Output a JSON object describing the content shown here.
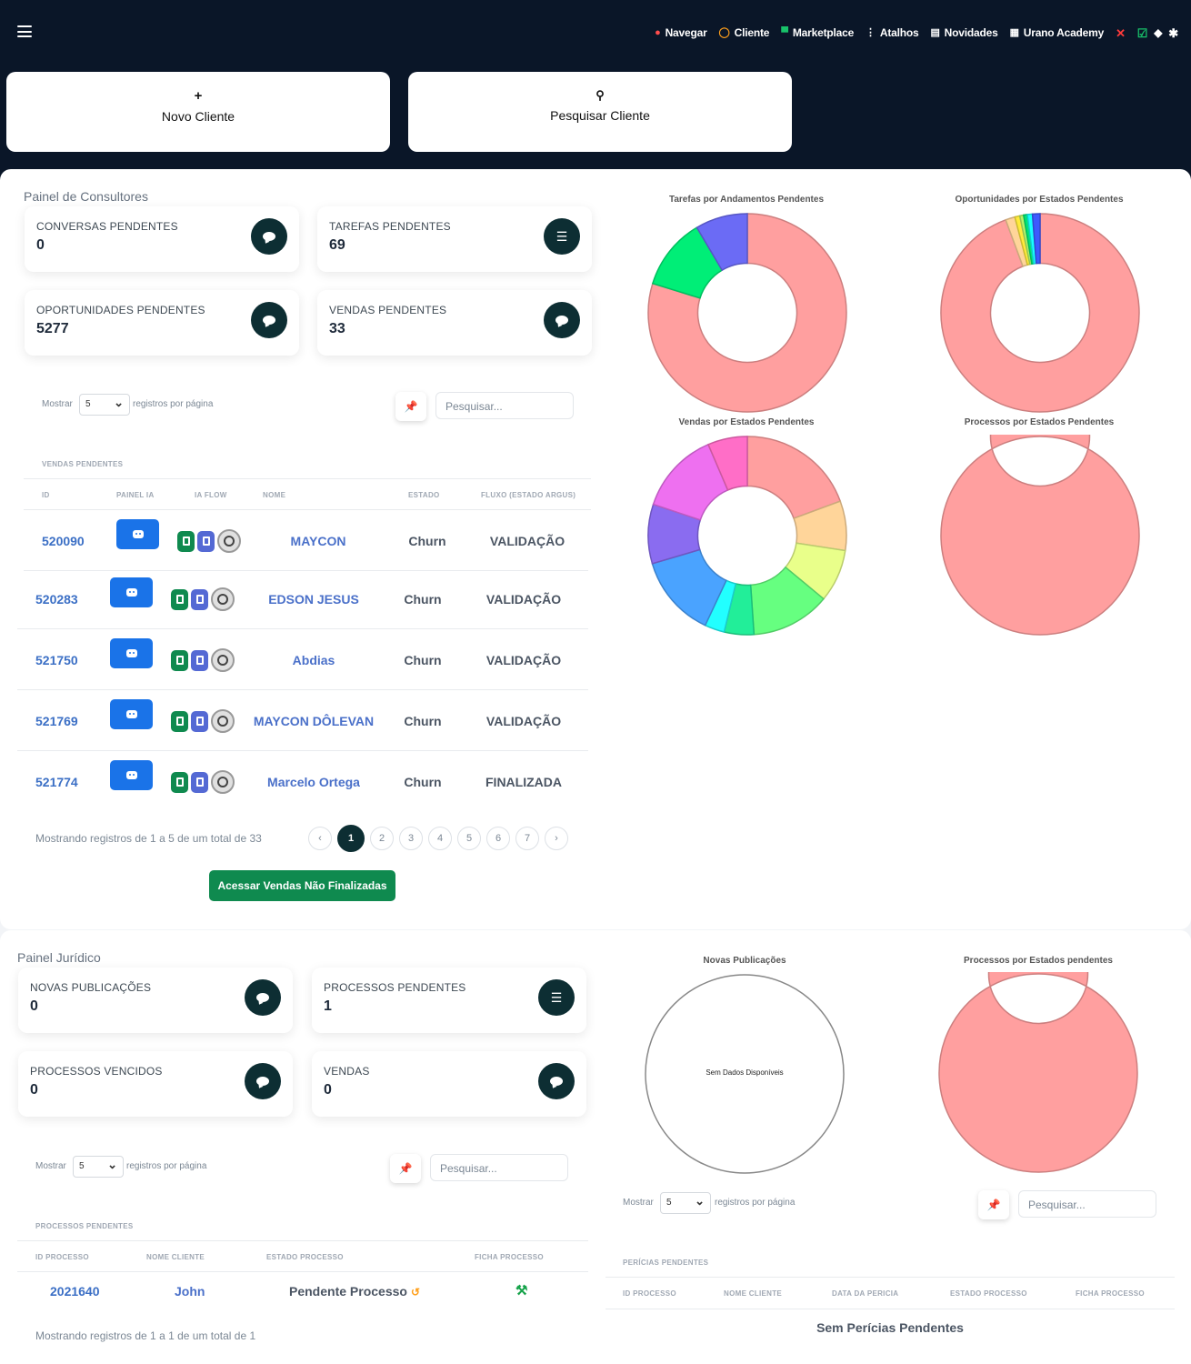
{
  "nav": {
    "items": [
      {
        "label": "Navegar",
        "icon": "map-pin-icon",
        "color": "#ff4d4d"
      },
      {
        "label": "Cliente",
        "icon": "search-icon",
        "color": "#ff9f1a"
      },
      {
        "label": "Marketplace",
        "icon": "store-icon",
        "color": "#18c26a"
      },
      {
        "label": "Atalhos",
        "icon": "vertical-dots-icon",
        "color": "#ffffff"
      },
      {
        "label": "Novidades",
        "icon": "newspaper-icon",
        "color": "#ffffff"
      },
      {
        "label": "Urano Academy",
        "icon": "clapperboard-icon",
        "color": "#ffffff"
      }
    ],
    "status_icons": [
      "phone-off-icon",
      "check-square-icon",
      "bell-icon",
      "gear-icon"
    ]
  },
  "actions": {
    "new_client": {
      "symbol": "+",
      "label": "Novo Cliente"
    },
    "search_client": {
      "symbol": "⚲",
      "label": "Pesquisar Cliente"
    }
  },
  "consultores": {
    "title": "Painel de Consultores",
    "cards": [
      {
        "label": "CONVERSAS PENDENTES",
        "value": "0",
        "icon": "chat-bubble-icon"
      },
      {
        "label": "TAREFAS PENDENTES",
        "value": "69",
        "icon": "list-icon"
      },
      {
        "label": "OPORTUNIDADES PENDENTES",
        "value": "5277",
        "icon": "chat-bubble-icon"
      },
      {
        "label": "VENDAS PENDENTES",
        "value": "33",
        "icon": "chat-bubble-icon"
      }
    ],
    "show_label": "Mostrar",
    "page_size": "5",
    "per_page_label": "registros por página",
    "search_placeholder": "Pesquisar...",
    "table_caption": "VENDAS PENDENTES",
    "columns": [
      "ID",
      "PAINEL IA",
      "IA FLOW",
      "NOME",
      "ESTADO",
      "FLUXO (ESTADO ARGUS)"
    ],
    "rows": [
      {
        "id": "520090",
        "name": "MAYCON",
        "estado": "Churn",
        "fluxo": "VALIDAÇÃO"
      },
      {
        "id": "520283",
        "name": "EDSON JESUS",
        "estado": "Churn",
        "fluxo": "VALIDAÇÃO"
      },
      {
        "id": "521750",
        "name": "Abdias",
        "estado": "Churn",
        "fluxo": "VALIDAÇÃO"
      },
      {
        "id": "521769",
        "name": "MAYCON DÔLEVAN",
        "estado": "Churn",
        "fluxo": "VALIDAÇÃO"
      },
      {
        "id": "521774",
        "name": "Marcelo Ortega",
        "estado": "Churn",
        "fluxo": "FINALIZADA"
      }
    ],
    "summary": "Mostrando registros de 1 a 5 de um total de 33",
    "pages": [
      "‹",
      "1",
      "2",
      "3",
      "4",
      "5",
      "6",
      "7",
      "›"
    ],
    "current_page": "1",
    "cta": "Acessar Vendas Não Finalizadas"
  },
  "chart_data": [
    {
      "type": "pie",
      "title": "Tarefas por Andamentos Pendentes",
      "values": [
        75,
        11,
        8
      ],
      "colors": [
        "#ff9f9f",
        "#00ee77",
        "#6b6bf5"
      ]
    },
    {
      "type": "pie",
      "title": "Oportunidades por Estados Pendentes",
      "values": [
        92,
        1.5,
        0.8,
        0.6,
        0.6,
        0.8,
        1.2
      ],
      "colors": [
        "#ff9f9f",
        "#ffd59a",
        "#ffeb3b",
        "#b6f36b",
        "#00e676",
        "#18ffff",
        "#3d5afe"
      ]
    },
    {
      "type": "pie",
      "title": "Vendas por Estados Pendentes",
      "values": [
        18,
        7.5,
        8,
        12,
        4.5,
        3,
        12.5,
        9,
        12.5,
        6
      ],
      "colors": [
        "#ff9f9f",
        "#ffd59a",
        "#e9ff8a",
        "#66ff80",
        "#22ee99",
        "#22ffff",
        "#4aa3ff",
        "#8a6cf0",
        "#ee70f0",
        "#ff6ec7"
      ]
    },
    {
      "type": "pie",
      "title": "Processos por Estados Pendentes",
      "values": [
        99.5
      ],
      "colors": [
        "#ff9f9f"
      ]
    },
    {
      "type": "pie",
      "title": "Novas Publicações",
      "values": [],
      "colors": [],
      "empty_text": "Sem Dados Disponíveis"
    },
    {
      "type": "pie",
      "title": "Processos por Estados pendentes",
      "values": [
        100
      ],
      "colors": [
        "#ff9f9f"
      ]
    }
  ],
  "juridico": {
    "title": "Painel Jurídico",
    "cards": [
      {
        "label": "NOVAS PUBLICAÇÕES",
        "value": "0",
        "icon": "chat-bubble-icon"
      },
      {
        "label": "PROCESSOS PENDENTES",
        "value": "1",
        "icon": "list-icon"
      },
      {
        "label": "PROCESSOS VENCIDOS",
        "value": "0",
        "icon": "chat-bubble-icon"
      },
      {
        "label": "VENDAS",
        "value": "0",
        "icon": "chat-bubble-icon"
      }
    ],
    "show_label": "Mostrar",
    "page_size": "5",
    "per_page_label": "registros por página",
    "search_placeholder": "Pesquisar...",
    "table_caption": "PROCESSOS PENDENTES",
    "columns": [
      "ID PROCESSO",
      "NOME CLIENTE",
      "ESTADO PROCESSO",
      "FICHA PROCESSO"
    ],
    "rows": [
      {
        "id": "2021640",
        "client": "John",
        "estado": "Pendente Processo",
        "ficha_icon": "gavel-icon"
      }
    ],
    "summary": "Mostrando registros de 1 a 1 de um total de 1"
  },
  "pericias": {
    "show_label": "Mostrar",
    "page_size": "5",
    "per_page_label": "registros por página",
    "search_placeholder": "Pesquisar...",
    "table_caption": "PERÍCIAS PENDENTES",
    "columns": [
      "ID PROCESSO",
      "NOME CLIENTE",
      "DATA DA PERICIA",
      "ESTADO PROCESSO",
      "FICHA PROCESSO"
    ],
    "empty_text": "Sem Perícias Pendentes"
  }
}
